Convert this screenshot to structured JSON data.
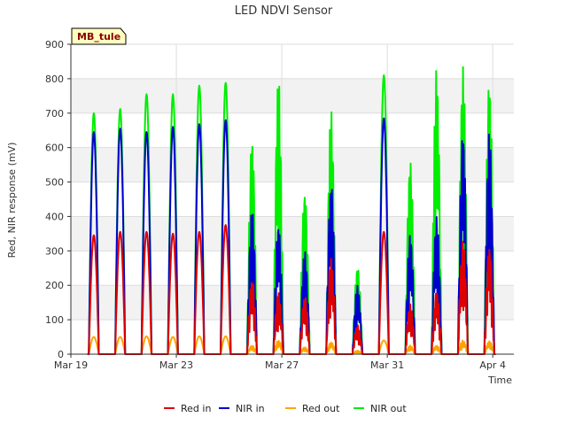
{
  "chart_data": {
    "type": "line",
    "title": "LED NDVI Sensor",
    "xlabel": "Time",
    "ylabel": "Red, NIR response (mV)",
    "badge": "MB_tule",
    "ylim": [
      0,
      900
    ],
    "yticks": [
      0,
      100,
      200,
      300,
      400,
      500,
      600,
      700,
      800,
      900
    ],
    "xlim_days": [
      0,
      16.8
    ],
    "xticks": [
      {
        "day": 0,
        "label": "Mar 19"
      },
      {
        "day": 4,
        "label": "Mar 23"
      },
      {
        "day": 8,
        "label": "Mar 27"
      },
      {
        "day": 12,
        "label": "Mar 31"
      },
      {
        "day": 16,
        "label": "Apr 4"
      }
    ],
    "grid": true,
    "legend_position": "bottom",
    "daily_peaks": {
      "day_start_offset": 0.75,
      "day_width": 0.38,
      "red_in": [
        345,
        355,
        355,
        350,
        355,
        375,
        220,
        180,
        170,
        280,
        85,
        355,
        145,
        185,
        330,
        315
      ],
      "nir_in": [
        645,
        655,
        645,
        660,
        668,
        680,
        420,
        380,
        300,
        500,
        200,
        685,
        350,
        400,
        650,
        645
      ],
      "red_out": [
        50,
        50,
        52,
        50,
        52,
        52,
        25,
        40,
        20,
        35,
        10,
        40,
        25,
        25,
        40,
        38
      ],
      "nir_out": [
        700,
        712,
        755,
        755,
        780,
        788,
        630,
        805,
        475,
        710,
        255,
        810,
        565,
        835,
        840,
        800
      ]
    },
    "series": [
      {
        "name": "Red in",
        "color": "#dd0000"
      },
      {
        "name": "NIR in",
        "color": "#0000cc"
      },
      {
        "name": "Red out",
        "color": "#ffa500"
      },
      {
        "name": "NIR out",
        "color": "#00ee00"
      }
    ]
  }
}
